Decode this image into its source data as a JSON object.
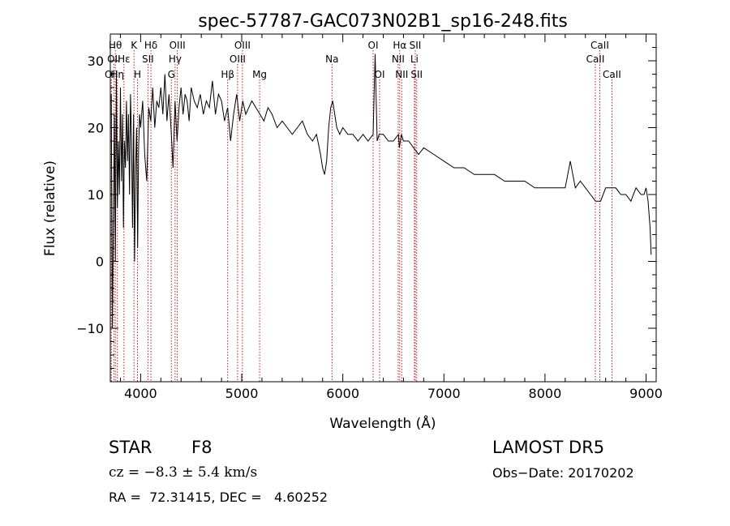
{
  "chart_data": {
    "type": "line",
    "title": "spec-57787-GAC073N02B1_sp16-248.fits",
    "xlabel": "Wavelength (Å)",
    "ylabel": "Flux (relative)",
    "xlim": [
      3700,
      9100
    ],
    "ylim": [
      -18,
      34
    ],
    "xticks": [
      4000,
      5000,
      6000,
      7000,
      8000,
      9000
    ],
    "yticks": [
      -10,
      0,
      10,
      20,
      30
    ],
    "grid": false,
    "series": [
      {
        "color": "#000000",
        "x": [
          3710,
          3720,
          3730,
          3740,
          3750,
          3760,
          3770,
          3780,
          3790,
          3800,
          3810,
          3820,
          3830,
          3840,
          3850,
          3860,
          3870,
          3880,
          3890,
          3900,
          3910,
          3920,
          3930,
          3940,
          3950,
          3960,
          3970,
          3980,
          3990,
          4000,
          4020,
          4040,
          4060,
          4080,
          4100,
          4120,
          4140,
          4160,
          4180,
          4200,
          4220,
          4240,
          4260,
          4280,
          4300,
          4320,
          4340,
          4360,
          4380,
          4400,
          4420,
          4440,
          4460,
          4480,
          4500,
          4530,
          4560,
          4590,
          4620,
          4650,
          4680,
          4710,
          4740,
          4770,
          4800,
          4830,
          4860,
          4890,
          4920,
          4950,
          4980,
          5010,
          5040,
          5070,
          5100,
          5140,
          5180,
          5220,
          5260,
          5300,
          5350,
          5400,
          5450,
          5500,
          5550,
          5600,
          5650,
          5700,
          5740,
          5780,
          5800,
          5820,
          5840,
          5860,
          5880,
          5900,
          5920,
          5940,
          5970,
          6000,
          6050,
          6100,
          6150,
          6200,
          6250,
          6300,
          6320,
          6340,
          6360,
          6400,
          6450,
          6500,
          6550,
          6560,
          6580,
          6600,
          6650,
          6700,
          6750,
          6800,
          6900,
          7000,
          7100,
          7200,
          7300,
          7400,
          7500,
          7600,
          7700,
          7800,
          7900,
          8000,
          8100,
          8200,
          8250,
          8300,
          8350,
          8400,
          8450,
          8500,
          8550,
          8600,
          8650,
          8700,
          8750,
          8800,
          8850,
          8900,
          8950,
          8980,
          9000,
          9020,
          9040,
          9050
        ],
        "y": [
          25,
          -10,
          5,
          22,
          0,
          28,
          8,
          18,
          10,
          26,
          12,
          22,
          5,
          18,
          14,
          24,
          15,
          22,
          10,
          25,
          18,
          5,
          22,
          0,
          14,
          20,
          2,
          17,
          22,
          20,
          24,
          16,
          12,
          23,
          21,
          26,
          20,
          24,
          23,
          26,
          22,
          28,
          21,
          25,
          20,
          14,
          24,
          18,
          23,
          26,
          22,
          25,
          24,
          21,
          26,
          24,
          23,
          25,
          22,
          24,
          23,
          27,
          22,
          25,
          24,
          21,
          23,
          18,
          22,
          25,
          21,
          24,
          22,
          23,
          24,
          23,
          22,
          21,
          23,
          22,
          20,
          21,
          20,
          19,
          20,
          21,
          19,
          18,
          19,
          16,
          14,
          13,
          15,
          20,
          23,
          24,
          22,
          20,
          19,
          20,
          19,
          19,
          18,
          19,
          18,
          19,
          31,
          18,
          19,
          19,
          18,
          18,
          19,
          17,
          19,
          18,
          18,
          17,
          16,
          17,
          16,
          15,
          14,
          14,
          13,
          13,
          13,
          12,
          12,
          12,
          11,
          11,
          11,
          11,
          15,
          11,
          12,
          11,
          10,
          9,
          9,
          11,
          11,
          11,
          10,
          10,
          9,
          11,
          10,
          10,
          11,
          9,
          5,
          1
        ]
      }
    ],
    "lines": [
      {
        "x": 3750,
        "label": "Hθ",
        "row": 1
      },
      {
        "x": 3735,
        "label": "OII",
        "row": 2
      },
      {
        "x": 3710,
        "label": "OII",
        "row": 3
      },
      {
        "x": 3770,
        "label": "Hη",
        "row": 3
      },
      {
        "x": 3835,
        "label": "Hε",
        "row": 2
      },
      {
        "x": 3934,
        "label": "K",
        "row": 1
      },
      {
        "x": 3969,
        "label": "H",
        "row": 3
      },
      {
        "x": 4072,
        "label": "SII",
        "row": 2
      },
      {
        "x": 4102,
        "label": "Hδ",
        "row": 1
      },
      {
        "x": 4304,
        "label": "G",
        "row": 3
      },
      {
        "x": 4341,
        "label": "Hγ",
        "row": 2
      },
      {
        "x": 4363,
        "label": "OIII",
        "row": 1
      },
      {
        "x": 4861,
        "label": "Hβ",
        "row": 3
      },
      {
        "x": 4959,
        "label": "OIII",
        "row": 2
      },
      {
        "x": 5007,
        "label": "OIII",
        "row": 1
      },
      {
        "x": 5177,
        "label": "Mg",
        "row": 3
      },
      {
        "x": 5893,
        "label": "Na",
        "row": 2
      },
      {
        "x": 6300,
        "label": "OI",
        "row": 1
      },
      {
        "x": 6364,
        "label": "OI",
        "row": 3
      },
      {
        "x": 6548,
        "label": "NII",
        "row": 2
      },
      {
        "x": 6563,
        "label": "Hα",
        "row": 1
      },
      {
        "x": 6583,
        "label": "NII",
        "row": 3
      },
      {
        "x": 6708,
        "label": "Li",
        "row": 2
      },
      {
        "x": 6717,
        "label": "SII",
        "row": 1
      },
      {
        "x": 6731,
        "label": "SII",
        "row": 3
      },
      {
        "x": 8498,
        "label": "CaII",
        "row": 2
      },
      {
        "x": 8542,
        "label": "CaII",
        "row": 1
      },
      {
        "x": 8662,
        "label": "CaII",
        "row": 3
      }
    ]
  },
  "info": {
    "object_type": "STAR",
    "subclass": "F8",
    "survey": "LAMOST DR5",
    "cz": "cz = −8.3 ± 5.4 km/s",
    "obs_date": "Obs−Date: 20170202",
    "coords": "RA =  72.31415, DEC =   4.60252"
  }
}
